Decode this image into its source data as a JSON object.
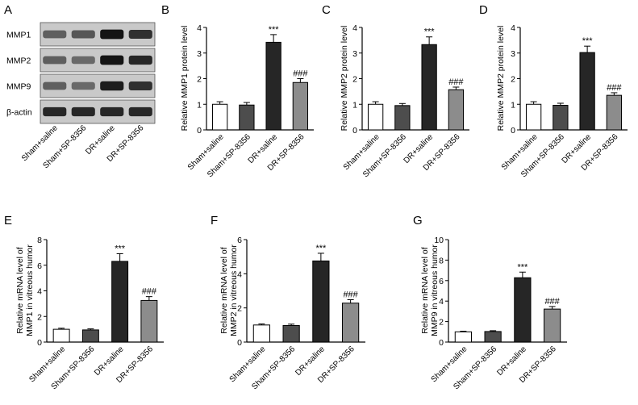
{
  "blot": {
    "letter": "A",
    "rows": [
      "MMP1",
      "MMP2",
      "MMP9",
      "β-actin"
    ],
    "lanes": [
      "Sham+saline",
      "Sham+SP-8356",
      "DR+saline",
      "DR+SP-8356"
    ],
    "intensity": [
      [
        0.55,
        0.6,
        0.95,
        0.8
      ],
      [
        0.55,
        0.5,
        0.95,
        0.85
      ],
      [
        0.55,
        0.5,
        0.9,
        0.8
      ],
      [
        0.85,
        0.85,
        0.85,
        0.85
      ]
    ]
  },
  "chart_data": [
    {
      "letter": "B",
      "type": "bar",
      "categories": [
        "Sham+saline",
        "Sham+SP-8356",
        "DR+saline",
        "DR+SP-8356"
      ],
      "values": [
        1.0,
        0.97,
        3.42,
        1.85
      ],
      "errors": [
        0.1,
        0.1,
        0.3,
        0.15
      ],
      "annotations": [
        "",
        "",
        "***",
        "###"
      ],
      "ylabel": "Relative MMP1 protein level",
      "ylim": [
        0,
        4
      ],
      "yticks": [
        "0",
        "1",
        "2",
        "3",
        "4"
      ],
      "colors": [
        "#ffffff",
        "#4d4d4d",
        "#262626",
        "#8c8c8c"
      ]
    },
    {
      "letter": "C",
      "type": "bar",
      "categories": [
        "Sham+saline",
        "Sham+SP-8356",
        "DR+saline",
        "DR+SP-8356"
      ],
      "values": [
        1.0,
        0.95,
        3.33,
        1.57
      ],
      "errors": [
        0.1,
        0.08,
        0.3,
        0.1
      ],
      "annotations": [
        "",
        "",
        "***",
        "###"
      ],
      "ylabel": "Relative MMP2 protein level",
      "ylim": [
        0,
        4
      ],
      "yticks": [
        "0",
        "1",
        "2",
        "3",
        "4"
      ],
      "colors": [
        "#ffffff",
        "#4d4d4d",
        "#262626",
        "#8c8c8c"
      ]
    },
    {
      "letter": "D",
      "type": "bar",
      "categories": [
        "Sham+saline",
        "Sham+SP-8356",
        "DR+saline",
        "DR+SP-8356"
      ],
      "values": [
        1.0,
        0.96,
        3.02,
        1.35
      ],
      "errors": [
        0.1,
        0.08,
        0.25,
        0.1
      ],
      "annotations": [
        "",
        "",
        "***",
        "###"
      ],
      "ylabel": "Relative MMP2 protein level",
      "ylim": [
        0,
        4
      ],
      "yticks": [
        "0",
        "1",
        "2",
        "3",
        "4"
      ],
      "colors": [
        "#ffffff",
        "#4d4d4d",
        "#262626",
        "#8c8c8c"
      ]
    },
    {
      "letter": "E",
      "type": "bar",
      "categories": [
        "Sham+saline",
        "Sham+SP-8356",
        "DR+saline",
        "DR+SP-8356"
      ],
      "values": [
        1.0,
        0.95,
        6.3,
        3.25
      ],
      "errors": [
        0.08,
        0.08,
        0.6,
        0.3
      ],
      "annotations": [
        "",
        "",
        "***",
        "###"
      ],
      "ylabel": "Relative mRNA level of MMP1 in vitreous humor",
      "ylabel_lines": [
        "Relative mRNA level of",
        "MMP1 in vitreous humor"
      ],
      "ylim": [
        0,
        8
      ],
      "yticks": [
        "0",
        "2",
        "4",
        "6",
        "8"
      ],
      "colors": [
        "#ffffff",
        "#4d4d4d",
        "#262626",
        "#8c8c8c"
      ]
    },
    {
      "letter": "F",
      "type": "bar",
      "categories": [
        "Sham+saline",
        "Sham+SP-8356",
        "DR+saline",
        "DR+SP-8356"
      ],
      "values": [
        1.0,
        0.97,
        4.75,
        2.28
      ],
      "errors": [
        0.06,
        0.08,
        0.45,
        0.2
      ],
      "annotations": [
        "",
        "",
        "***",
        "###"
      ],
      "ylabel": "Relative mRNA level of MMP2 in vitreous humor",
      "ylabel_lines": [
        "Relative mRNA level of",
        "MMP2 in vitreous humor"
      ],
      "ylim": [
        0,
        6
      ],
      "yticks": [
        "0",
        "2",
        "4",
        "6"
      ],
      "colors": [
        "#ffffff",
        "#4d4d4d",
        "#262626",
        "#8c8c8c"
      ]
    },
    {
      "letter": "G",
      "type": "bar",
      "categories": [
        "Sham+saline",
        "Sham+SP-8356",
        "DR+saline",
        "DR+SP-8356"
      ],
      "values": [
        1.0,
        1.03,
        6.28,
        3.22
      ],
      "errors": [
        0.06,
        0.08,
        0.55,
        0.25
      ],
      "annotations": [
        "",
        "",
        "***",
        "###"
      ],
      "ylabel": "Relative mRNA level of MMP9 in vitreous humor",
      "ylabel_lines": [
        "Relative mRNA level of",
        "MMP9 in vitreous humor"
      ],
      "ylim": [
        0,
        10
      ],
      "yticks": [
        "0",
        "2",
        "4",
        "6",
        "8",
        "10"
      ],
      "colors": [
        "#ffffff",
        "#4d4d4d",
        "#262626",
        "#8c8c8c"
      ]
    }
  ]
}
